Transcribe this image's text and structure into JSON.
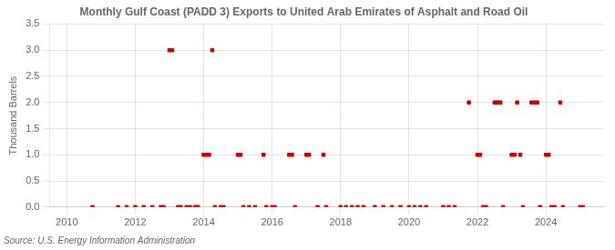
{
  "chart_data": {
    "type": "scatter",
    "title": "Monthly Gulf Coast (PADD 3) Exports to United Arab Emirates of Asphalt and Road Oil",
    "ylabel": "Thousand Barrels",
    "source": "Source: U.S. Energy Information Administration",
    "color": "#cc0000",
    "marker": "square",
    "grid": true,
    "xlim": [
      2009.5,
      2025.7
    ],
    "xticks": [
      2010,
      2012,
      2014,
      2016,
      2018,
      2020,
      2022,
      2024
    ],
    "ylim": [
      0,
      3.5
    ],
    "yticks": [
      {
        "value": 0.0,
        "label": "0.0"
      },
      0.5,
      {
        "value": 1.0,
        "label": "1.0"
      },
      1.5,
      {
        "value": 2.0,
        "label": "2.0"
      },
      2.5,
      {
        "value": 3.0,
        "label": "3.0"
      },
      3.5
    ],
    "x": [
      2010.75,
      2011.5,
      2011.75,
      2012.0,
      2012.25,
      2012.5,
      2012.75,
      2012.83,
      2013.0,
      2013.08,
      2013.25,
      2013.33,
      2013.5,
      2013.6,
      2013.75,
      2013.83,
      2014.0,
      2014.08,
      2014.16,
      2014.25,
      2014.33,
      2014.5,
      2014.58,
      2015.0,
      2015.08,
      2015.16,
      2015.33,
      2015.5,
      2015.75,
      2015.83,
      2016.0,
      2016.08,
      2016.5,
      2016.58,
      2016.67,
      2017.0,
      2017.08,
      2017.33,
      2017.5,
      2017.58,
      2018.0,
      2018.16,
      2018.33,
      2018.5,
      2018.67,
      2019.0,
      2019.25,
      2019.5,
      2019.75,
      2020.0,
      2020.16,
      2020.33,
      2020.5,
      2021.0,
      2021.16,
      2021.33,
      2021.75,
      2022.0,
      2022.08,
      2022.16,
      2022.25,
      2022.5,
      2022.58,
      2022.67,
      2022.75,
      2023.0,
      2023.08,
      2023.16,
      2023.25,
      2023.33,
      2023.58,
      2023.67,
      2023.75,
      2023.83,
      2024.0,
      2024.08,
      2024.16,
      2024.25,
      2024.42,
      2024.5,
      2025.0,
      2025.08
    ],
    "values": [
      0.0,
      0.0,
      0.0,
      0.0,
      0.0,
      0.0,
      0.0,
      0.0,
      3.0,
      3.0,
      0.0,
      0.0,
      0.0,
      0.0,
      0.0,
      0.0,
      1.0,
      1.0,
      1.0,
      3.0,
      0.0,
      0.0,
      0.0,
      1.0,
      1.0,
      0.0,
      0.0,
      0.0,
      1.0,
      0.0,
      0.0,
      0.0,
      1.0,
      1.0,
      0.0,
      1.0,
      1.0,
      0.0,
      1.0,
      0.0,
      0.0,
      0.0,
      0.0,
      0.0,
      0.0,
      0.0,
      0.0,
      0.0,
      0.0,
      0.0,
      0.0,
      0.0,
      0.0,
      0.0,
      0.0,
      0.0,
      2.0,
      1.0,
      1.0,
      0.0,
      0.0,
      2.0,
      2.0,
      2.0,
      0.0,
      1.0,
      1.0,
      2.0,
      1.0,
      0.0,
      2.0,
      2.0,
      2.0,
      0.0,
      1.0,
      1.0,
      0.0,
      0.0,
      2.0,
      0.0,
      0.0,
      0.0
    ]
  }
}
